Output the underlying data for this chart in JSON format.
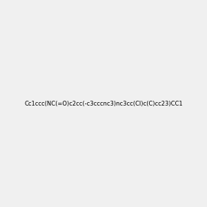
{
  "smiles": "Cc1ccc(NC(=O)c2cc(-c3cccnc3)nc3cc(Cl)c(C)cc23)CC1",
  "title": "",
  "background_color": "#f0f0f0",
  "bond_color": "#000000",
  "atom_colors": {
    "N": "#0000ff",
    "O": "#ff0000",
    "Cl": "#00aa00",
    "H": "#5599aa",
    "C": "#000000"
  },
  "figsize": [
    3.0,
    3.0
  ],
  "dpi": 100
}
